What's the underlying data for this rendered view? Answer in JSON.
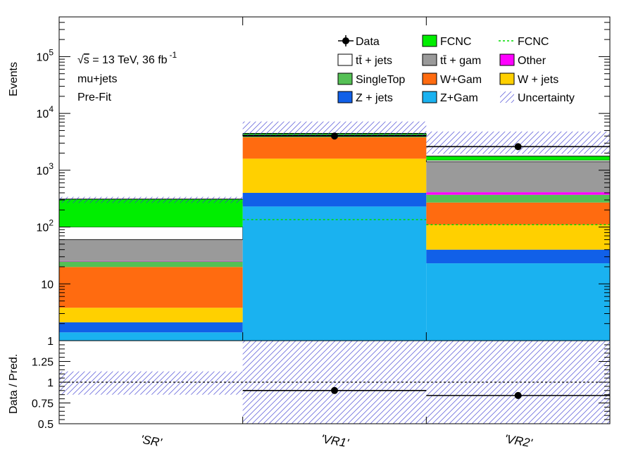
{
  "chart_data": {
    "type": "bar",
    "stacked": true,
    "log_scale_y": true,
    "categories": [
      "'SR'",
      "'VR1'",
      "'VR2'"
    ],
    "ylabel": "Events",
    "ylim": [
      1,
      500000
    ],
    "y_tick_labels": [
      {
        "value": 1,
        "base": "1",
        "exp": ""
      },
      {
        "value": 10,
        "base": "10",
        "exp": ""
      },
      {
        "value": 100,
        "base": "10",
        "exp": "2"
      },
      {
        "value": 1000,
        "base": "10",
        "exp": "3"
      },
      {
        "value": 10000,
        "base": "10",
        "exp": "4"
      },
      {
        "value": 100000,
        "base": "10",
        "exp": "5"
      }
    ],
    "annotations": {
      "sqrt_s": "s",
      "energy_text": " = 13 TeV, 36 fb",
      "lumi_exp": "-1",
      "channel": "mu+jets",
      "stage": "Pre-Fit"
    },
    "series": [
      {
        "name": "Z+Gam",
        "color": "#1ab2f0",
        "values": [
          1.4,
          230,
          23
        ]
      },
      {
        "name": "Z + jets",
        "color": "#1160e8",
        "values": [
          0.7,
          170,
          17
        ]
      },
      {
        "name": "W + jets",
        "color": "#ffd000",
        "values": [
          1.7,
          1200,
          70
        ]
      },
      {
        "name": "W+Gam",
        "color": "#ff6b10",
        "values": [
          16,
          2200,
          160
        ]
      },
      {
        "name": "SingleTop",
        "color": "#55c055",
        "values": [
          5,
          180,
          100
        ]
      },
      {
        "name": "Other",
        "color": "#ff00ff",
        "values": [
          0.5,
          20,
          40
        ]
      },
      {
        "name": "tt̄ +  gam",
        "color": "#9a9a9a",
        "values": [
          35,
          120,
          1000
        ]
      },
      {
        "name": "tt̄ + jets",
        "color": "#ffffff",
        "values": [
          40,
          130,
          90
        ]
      },
      {
        "name": "FCNC",
        "color": "#00ee00",
        "values": [
          210,
          200,
          270
        ]
      }
    ],
    "fcnc_line": {
      "name": "FCNC",
      "color": "#00dd00",
      "values": [
        0,
        135,
        110
      ]
    },
    "uncertainty": {
      "name": "Uncertainty",
      "low": [
        265,
        3900,
        1950
      ],
      "high": [
        340,
        7200,
        4800
      ]
    },
    "data": {
      "name": "Data",
      "values": [
        null,
        4000,
        2600
      ]
    },
    "ratio": {
      "ylabel": "Data / Pred.",
      "ylim": [
        0.5,
        1.5
      ],
      "y_ticks": [
        0.5,
        0.75,
        1,
        1.25
      ],
      "y_tick_labels": [
        "0.5",
        "0.75",
        "1",
        "1.25"
      ],
      "values": [
        null,
        0.9,
        0.84
      ],
      "band_low": [
        0.85,
        0.5,
        0.5
      ],
      "band_high": [
        1.13,
        1.5,
        1.5
      ]
    },
    "legend": {
      "placement": "top-right",
      "entries": [
        {
          "label": "Data",
          "kind": "marker"
        },
        {
          "label": "FCNC",
          "kind": "fill",
          "color": "#00ee00"
        },
        {
          "label": "FCNC",
          "kind": "dashed",
          "color": "#00dd00"
        },
        {
          "label": "tt̄ + jets",
          "kind": "fill",
          "color": "#ffffff"
        },
        {
          "label": "tt̄ +  gam",
          "kind": "fill",
          "color": "#9a9a9a"
        },
        {
          "label": "Other",
          "kind": "fill",
          "color": "#ff00ff"
        },
        {
          "label": "SingleTop",
          "kind": "fill",
          "color": "#55c055"
        },
        {
          "label": "W+Gam",
          "kind": "fill",
          "color": "#ff6b10"
        },
        {
          "label": "W + jets",
          "kind": "fill",
          "color": "#ffd000"
        },
        {
          "label": "Z + jets",
          "kind": "fill",
          "color": "#1160e8"
        },
        {
          "label": "Z+Gam",
          "kind": "fill",
          "color": "#1ab2f0"
        },
        {
          "label": "Uncertainty",
          "kind": "hatch"
        }
      ]
    }
  }
}
